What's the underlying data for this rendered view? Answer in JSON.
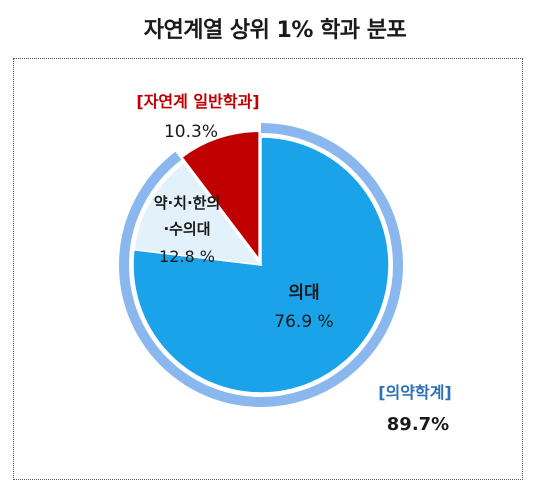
{
  "title": "자연계열 상위 1% 학과 분포",
  "colors": {
    "medicine": "#1aa3e8",
    "pharm_group": "#e3f1fb",
    "general": "#c00000",
    "outer_ring": "#8ab8ee",
    "group_label": "#2f6fb5",
    "general_label": "#c00000"
  },
  "chart_data": {
    "type": "pie",
    "slices": [
      {
        "name": "의대",
        "value": 76.9,
        "value_label": "76.9 %"
      },
      {
        "name": "약·치·한의·수의대",
        "value": 12.8,
        "value_label": "12.8 %",
        "name_line1": "약·치·한의",
        "name_line2": "·수의대"
      },
      {
        "name": "[자연계 일반학과]",
        "value": 10.3,
        "value_label": "10.3%"
      }
    ],
    "outer_group": {
      "name": "[의약학계]",
      "value": 89.7,
      "value_label": "89.7%"
    }
  }
}
